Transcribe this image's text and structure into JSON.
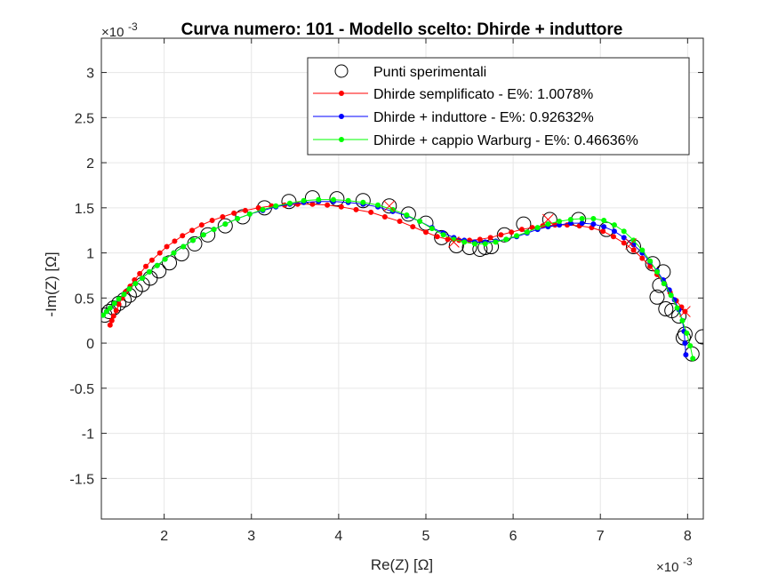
{
  "chart_data": {
    "type": "scatter",
    "title": "Curva numero: 101 - Modello scelto: Dhirde + induttore",
    "xlabel": "Re(Z) [Ω]",
    "ylabel": "-Im(Z) [Ω]",
    "x_exponent_label": "×10",
    "x_exponent_power": "-3",
    "y_exponent_label": "×10",
    "y_exponent_power": "-3",
    "xlim": [
      1.28,
      8.18
    ],
    "ylim": [
      -1.95,
      3.38
    ],
    "xticks": [
      2,
      3,
      4,
      5,
      6,
      7,
      8
    ],
    "xtick_labels": [
      "2",
      "3",
      "4",
      "5",
      "6",
      "7",
      "8"
    ],
    "yticks": [
      -1.5,
      -1,
      -0.5,
      0,
      0.5,
      1,
      1.5,
      2,
      2.5,
      3
    ],
    "ytick_labels": [
      "-1.5",
      "-1",
      "-0.5",
      "0",
      "0.5",
      "1",
      "1.5",
      "2",
      "2.5",
      "3"
    ],
    "grid": true,
    "legend_position": "top-right",
    "colors": {
      "experimental": "#000000",
      "simplified": "#ff0000",
      "inductor": "#0000ff",
      "warburg": "#00ff00",
      "axes": "#262626",
      "grid": "#e6e6e6"
    },
    "experimental": {
      "name": "Punti sperimentali",
      "x": [
        1.32,
        1.37,
        1.42,
        1.48,
        1.54,
        1.6,
        1.67,
        1.75,
        1.84,
        1.94,
        2.06,
        2.2,
        2.35,
        2.5,
        2.7,
        2.9,
        3.15,
        3.43,
        3.7,
        3.98,
        4.28,
        4.58,
        4.8,
        5.0,
        5.18,
        5.35,
        5.5,
        5.62,
        5.68,
        5.75,
        5.9,
        6.12,
        6.42,
        6.75,
        7.07,
        7.38,
        7.6,
        7.72,
        7.68,
        7.65,
        7.75,
        7.82,
        7.9,
        7.97,
        7.95,
        8.05,
        8.17
      ],
      "y": [
        0.31,
        0.35,
        0.39,
        0.44,
        0.48,
        0.53,
        0.59,
        0.65,
        0.72,
        0.8,
        0.89,
        0.99,
        1.1,
        1.2,
        1.3,
        1.4,
        1.5,
        1.57,
        1.61,
        1.6,
        1.58,
        1.52,
        1.43,
        1.33,
        1.17,
        1.08,
        1.06,
        1.04,
        1.06,
        1.07,
        1.2,
        1.32,
        1.37,
        1.37,
        1.26,
        1.07,
        0.88,
        0.79,
        0.64,
        0.51,
        0.38,
        0.36,
        0.3,
        0.1,
        0.06,
        -0.12,
        0.07
      ]
    },
    "series": [
      {
        "name": "Dhirde semplificato - E%: 1.0078%",
        "color": "#ff0000",
        "x": [
          1.38,
          1.4,
          1.42,
          1.45,
          1.48,
          1.52,
          1.56,
          1.61,
          1.66,
          1.72,
          1.79,
          1.86,
          1.95,
          2.03,
          2.12,
          2.21,
          2.32,
          2.43,
          2.55,
          2.67,
          2.8,
          2.93,
          3.08,
          3.23,
          3.38,
          3.53,
          3.7,
          3.87,
          4.03,
          4.2,
          4.37,
          4.53,
          4.7,
          4.85,
          5.0,
          5.13,
          5.25,
          5.38,
          5.5,
          5.62,
          5.74,
          5.86,
          5.98,
          6.1,
          6.22,
          6.34,
          6.48,
          6.62,
          6.76,
          6.9,
          7.03,
          7.15,
          7.27,
          7.38,
          7.48,
          7.57,
          7.65,
          7.73,
          7.8,
          7.87,
          7.93,
          7.97
        ],
        "y": [
          0.2,
          0.25,
          0.3,
          0.36,
          0.43,
          0.5,
          0.57,
          0.63,
          0.7,
          0.77,
          0.85,
          0.92,
          1.0,
          1.07,
          1.13,
          1.19,
          1.25,
          1.31,
          1.36,
          1.4,
          1.44,
          1.47,
          1.5,
          1.52,
          1.53,
          1.54,
          1.54,
          1.53,
          1.51,
          1.48,
          1.45,
          1.4,
          1.35,
          1.29,
          1.23,
          1.18,
          1.15,
          1.14,
          1.14,
          1.15,
          1.17,
          1.2,
          1.23,
          1.26,
          1.28,
          1.3,
          1.31,
          1.31,
          1.3,
          1.28,
          1.24,
          1.18,
          1.11,
          1.03,
          0.94,
          0.85,
          0.76,
          0.66,
          0.56,
          0.47,
          0.4,
          0.35
        ]
      },
      {
        "name": "Dhirde + induttore - E%: 0.92632%",
        "color": "#0000ff",
        "x": [
          1.3,
          1.34,
          1.38,
          1.43,
          1.48,
          1.54,
          1.6,
          1.67,
          1.75,
          1.83,
          1.92,
          2.01,
          2.11,
          2.22,
          2.33,
          2.45,
          2.57,
          2.7,
          2.84,
          2.98,
          3.13,
          3.28,
          3.44,
          3.6,
          3.77,
          3.94,
          4.11,
          4.28,
          4.45,
          4.62,
          4.78,
          4.93,
          5.07,
          5.2,
          5.32,
          5.44,
          5.56,
          5.68,
          5.8,
          5.92,
          6.04,
          6.16,
          6.28,
          6.4,
          6.53,
          6.66,
          6.79,
          6.92,
          7.04,
          7.16,
          7.27,
          7.38,
          7.48,
          7.57,
          7.65,
          7.72,
          7.79,
          7.85,
          7.9,
          7.94,
          7.96,
          7.97,
          7.98
        ],
        "y": [
          0.31,
          0.35,
          0.39,
          0.44,
          0.49,
          0.54,
          0.6,
          0.66,
          0.72,
          0.79,
          0.86,
          0.93,
          1.0,
          1.07,
          1.14,
          1.2,
          1.26,
          1.32,
          1.38,
          1.43,
          1.47,
          1.51,
          1.54,
          1.56,
          1.57,
          1.57,
          1.56,
          1.54,
          1.51,
          1.46,
          1.41,
          1.35,
          1.28,
          1.22,
          1.17,
          1.14,
          1.12,
          1.12,
          1.13,
          1.15,
          1.18,
          1.22,
          1.26,
          1.29,
          1.31,
          1.33,
          1.33,
          1.32,
          1.29,
          1.24,
          1.17,
          1.09,
          1.0,
          0.9,
          0.8,
          0.7,
          0.59,
          0.48,
          0.37,
          0.25,
          0.13,
          0.0,
          -0.13
        ]
      },
      {
        "name": "Dhirde + cappio Warburg - E%: 0.46636%",
        "color": "#00ff00",
        "x": [
          1.3,
          1.34,
          1.38,
          1.43,
          1.48,
          1.54,
          1.6,
          1.67,
          1.75,
          1.83,
          1.92,
          2.01,
          2.11,
          2.22,
          2.33,
          2.45,
          2.57,
          2.7,
          2.84,
          2.98,
          3.13,
          3.28,
          3.44,
          3.6,
          3.77,
          3.94,
          4.11,
          4.28,
          4.45,
          4.62,
          4.78,
          4.93,
          5.07,
          5.2,
          5.32,
          5.44,
          5.56,
          5.68,
          5.8,
          5.92,
          6.04,
          6.16,
          6.28,
          6.4,
          6.53,
          6.66,
          6.79,
          6.92,
          7.04,
          7.16,
          7.27,
          7.38,
          7.48,
          7.57,
          7.65,
          7.73,
          7.81,
          7.88,
          7.94,
          7.99,
          8.03,
          8.06
        ],
        "y": [
          0.31,
          0.35,
          0.39,
          0.44,
          0.49,
          0.54,
          0.6,
          0.66,
          0.72,
          0.79,
          0.86,
          0.93,
          1.0,
          1.07,
          1.14,
          1.2,
          1.26,
          1.32,
          1.38,
          1.43,
          1.48,
          1.52,
          1.55,
          1.58,
          1.59,
          1.59,
          1.58,
          1.56,
          1.53,
          1.48,
          1.42,
          1.35,
          1.27,
          1.2,
          1.15,
          1.12,
          1.1,
          1.1,
          1.12,
          1.15,
          1.19,
          1.23,
          1.28,
          1.32,
          1.35,
          1.37,
          1.38,
          1.38,
          1.36,
          1.31,
          1.24,
          1.14,
          1.03,
          0.91,
          0.79,
          0.66,
          0.53,
          0.39,
          0.25,
          0.11,
          -0.03,
          -0.17
        ]
      }
    ],
    "x_markers": {
      "color": "#ff0000",
      "x": [
        4.58,
        5.32,
        6.4,
        7.35,
        7.97
      ],
      "y": [
        1.52,
        1.12,
        1.37,
        1.1,
        0.35
      ]
    }
  }
}
